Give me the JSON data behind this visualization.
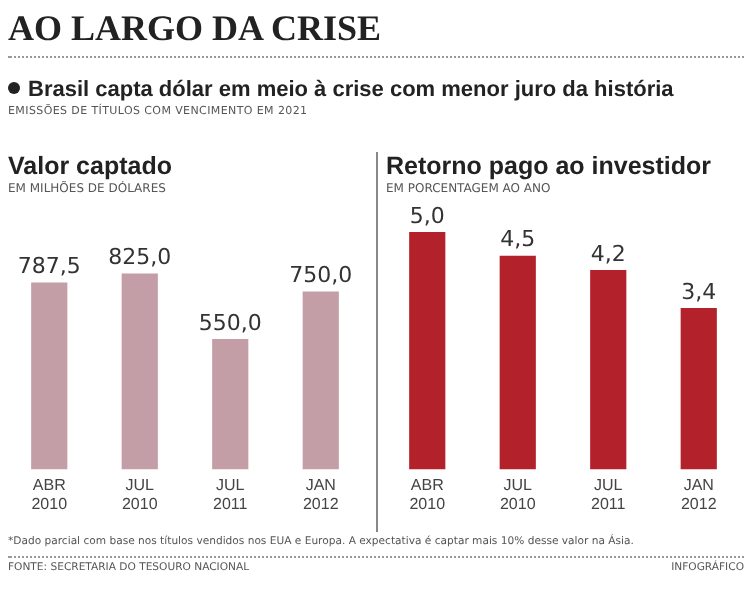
{
  "chart_data": [
    {
      "type": "other",
      "title": "AO LARGO DA CRISE",
      "subtitle": "Brasil capta dólar em meio à crise com menor juro da história",
      "annotations": [
        "EMISSÕES DE TÍTULOS COM VENCIMENTO EM 2021"
      ]
    },
    {
      "type": "bar",
      "title": "Valor captado",
      "subtitle": "EM MILHÕES DE DÓLARES",
      "categories": [
        "ABR 2010",
        "JUL 2010",
        "JUL 2011",
        "JAN 2012"
      ],
      "values": [
        787.5,
        825.0,
        550.0,
        750.0
      ],
      "value_labels": [
        "787,5",
        "825,0",
        "550,0",
        "750,0"
      ],
      "color": "#c49ea6",
      "tick_labels": "x",
      "grid": false,
      "legend": false
    },
    {
      "type": "bar",
      "title": "Retorno pago ao investidor",
      "subtitle": "EM PORCENTAGEM AO ANO",
      "categories": [
        "ABR 2010",
        "JUL 2010",
        "JUL 2011",
        "JAN 2012"
      ],
      "values": [
        5.0,
        4.5,
        4.2,
        3.4
      ],
      "value_labels": [
        "5,0",
        "4,5",
        "4,2",
        "3,4"
      ],
      "color": "#b3222b",
      "tick_labels": "x",
      "grid": false,
      "legend": false
    },
    {
      "type": "other",
      "annotations": [
        "*Dado parcial com base nos títulos vendidos nos EUA e Europa. A expectativa é captar mais 10% desse valor na Ásia.",
        "FONTE: SECRETARIA DO TESOURO NACIONAL",
        "INFOGRÁFICO"
      ]
    }
  ]
}
